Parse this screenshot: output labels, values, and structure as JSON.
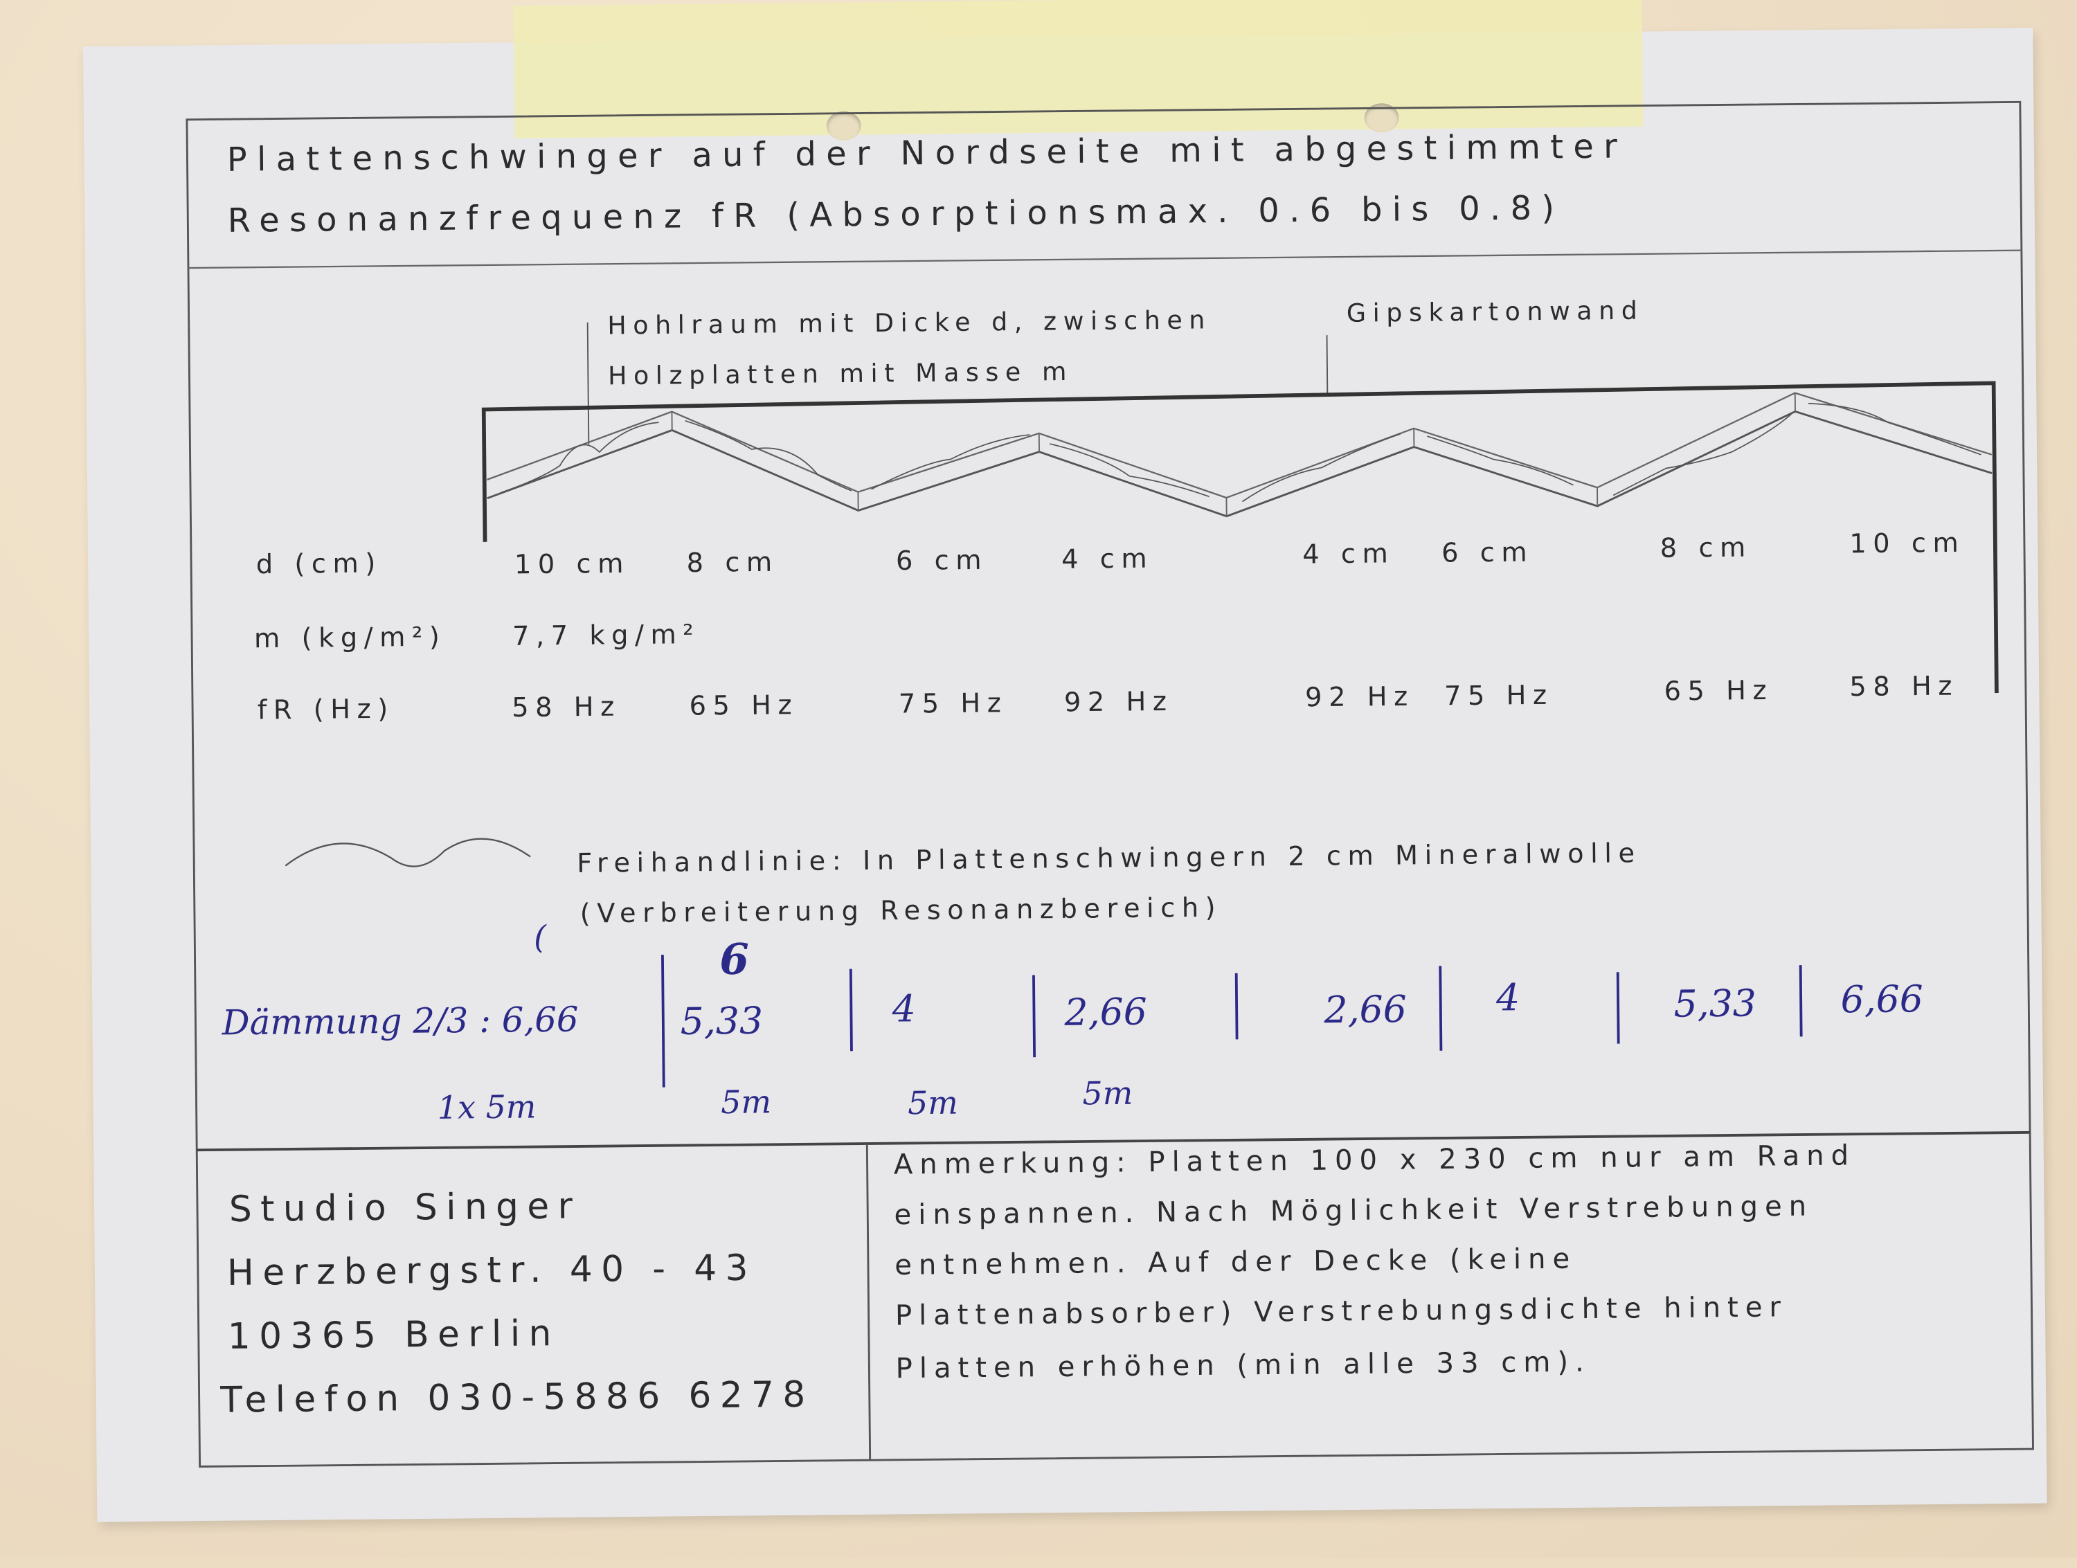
{
  "title": {
    "line1": "Plattenschwinger auf der Nordseite mit abgestimmter",
    "line2": "Resonanzfrequenz fR (Absorptionsmax. 0.6 bis 0.8)"
  },
  "diagram": {
    "cavity_label_1": "Hohlraum mit Dicke d, zwischen",
    "cavity_label_2": "Holzplatten mit Masse m",
    "wall_label": "Gipskartonwand"
  },
  "rows": {
    "d": {
      "label": "d (cm)",
      "values": [
        "10 cm",
        "8 cm",
        "6 cm",
        "4 cm",
        "4 cm",
        "6 cm",
        "8 cm",
        "10 cm"
      ]
    },
    "m": {
      "label": "m (kg/m²)",
      "values": [
        "7,7 kg/m²"
      ]
    },
    "fR": {
      "label": "fR (Hz)",
      "values": [
        "58 Hz",
        "65 Hz",
        "75 Hz",
        "92 Hz",
        "92 Hz",
        "75 Hz",
        "65 Hz",
        "58 Hz"
      ]
    }
  },
  "legend": {
    "line1": "Freihandlinie: In Plattenschwingern 2 cm Mineralwolle",
    "line2": "(Verbreiterung Resonanzbereich)"
  },
  "handwritten": {
    "label": "Dämmung 2/3 : 6,66",
    "values": [
      "5,33",
      "4",
      "2,66",
      "2,66",
      "4",
      "5,33",
      "6,66"
    ],
    "marks": [
      "(",
      "6"
    ],
    "bottom": [
      "1x 5m",
      "5m",
      "5m",
      "5m"
    ],
    "ink_color": "#2c2a88"
  },
  "address": {
    "name": "Studio Singer",
    "street": "Herzbergstr. 40 - 43",
    "city": "10365 Berlin",
    "phone": "Telefon 030-5886 6278"
  },
  "note": {
    "lines": [
      "Anmerkung: Platten 100 x 230 cm nur am Rand",
      "einspannen. Nach Möglichkeit Verstrebungen",
      "entnehmen. Auf der Decke (keine",
      "Plattenabsorber) Verstrebungsdichte hinter",
      "Platten erhöhen (min alle 33 cm)."
    ]
  }
}
